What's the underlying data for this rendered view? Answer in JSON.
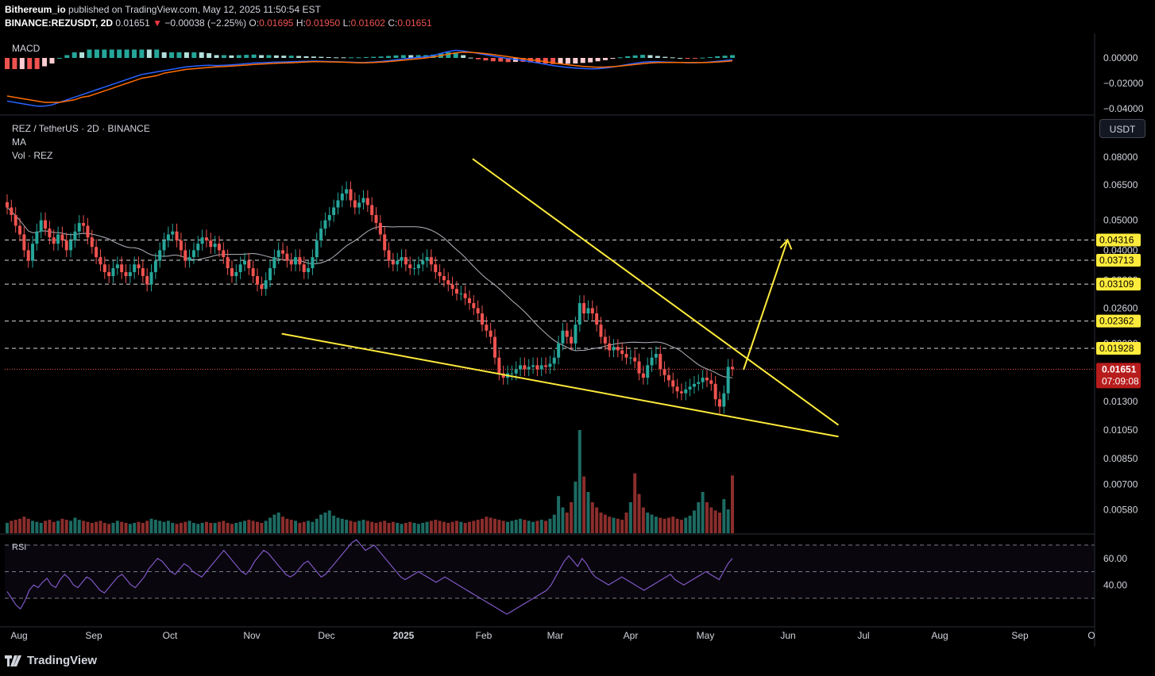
{
  "header": {
    "author": "Bithereum_io",
    "published_text": "published on TradingView.com, May 12, 2025 11:50:54 EST",
    "symbol": "BINANCE:REZUSDT, 2D",
    "last": "0.01651",
    "change_arrow": "▼",
    "change": "−0.00038 (−2.25%)",
    "o_label": "O:",
    "open": "0.01695",
    "h_label": "H:",
    "high": "0.01950",
    "l_label": "L:",
    "low": "0.01602",
    "c_label": "C:",
    "close": "0.01651"
  },
  "panes": {
    "macd_label": "MACD",
    "main_title": "REZ / TetherUS · 2D · BINANCE",
    "ma_label": "MA",
    "vol_label": "Vol · REZ",
    "rsi_label": "RSI"
  },
  "currency_button": "USDT",
  "branding": "TradingView",
  "icons": {
    "logo": "tradingview-logo-icon",
    "annotation_arrow": "arrow-up-right-icon"
  },
  "colors": {
    "background": "#000000",
    "up": "#26a69a",
    "down": "#ef5350",
    "trendline": "#ffeb3b",
    "ma": "#b2b5be",
    "macd": "#2962ff",
    "signal": "#ff6d00",
    "rsi": "#7e57c2",
    "price_tag": "#b71c1c"
  },
  "chart_data": [
    {
      "type": "candlestick",
      "title": "REZ / TetherUS · 2D · BINANCE",
      "price_scale": "log",
      "ylim": [
        0.0052,
        0.098
      ],
      "x_labels": [
        "Aug",
        "Sep",
        "Oct",
        "Nov",
        "Dec",
        "2025",
        "Feb",
        "Mar",
        "Apr",
        "May",
        "Jun",
        "Jul",
        "Aug",
        "Sep",
        "O"
      ],
      "y_ticks": [
        "0.08000",
        "0.06500",
        "0.05000",
        "0.04000",
        "0.03200",
        "0.02600",
        "0.02000",
        "0.01600",
        "0.01300",
        "0.01050",
        "0.00850",
        "0.00700",
        "0.00580"
      ],
      "y_tick_values": [
        0.08,
        0.065,
        0.05,
        0.04,
        0.032,
        0.026,
        0.02,
        0.016,
        0.013,
        0.0105,
        0.0085,
        0.007,
        0.0058
      ],
      "horizontal_levels": [
        0.04316,
        0.03713,
        0.03109,
        0.02362,
        0.01928
      ],
      "level_labels": [
        "0.04316",
        "0.03713",
        "0.03109",
        "0.02362",
        "0.01928"
      ],
      "last_price": 0.01651,
      "last_price_label": "0.01651",
      "countdown": "07:09:08",
      "candles_close": [
        0.055,
        0.052,
        0.048,
        0.045,
        0.04,
        0.037,
        0.042,
        0.046,
        0.05,
        0.047,
        0.044,
        0.042,
        0.045,
        0.043,
        0.04,
        0.043,
        0.046,
        0.049,
        0.048,
        0.044,
        0.041,
        0.038,
        0.036,
        0.034,
        0.033,
        0.035,
        0.036,
        0.034,
        0.033,
        0.034,
        0.036,
        0.035,
        0.033,
        0.031,
        0.034,
        0.037,
        0.04,
        0.043,
        0.045,
        0.046,
        0.043,
        0.04,
        0.037,
        0.038,
        0.04,
        0.042,
        0.044,
        0.043,
        0.041,
        0.042,
        0.04,
        0.038,
        0.035,
        0.033,
        0.034,
        0.036,
        0.037,
        0.035,
        0.033,
        0.031,
        0.03,
        0.032,
        0.035,
        0.038,
        0.04,
        0.039,
        0.037,
        0.036,
        0.038,
        0.036,
        0.034,
        0.035,
        0.038,
        0.043,
        0.047,
        0.05,
        0.052,
        0.055,
        0.058,
        0.061,
        0.063,
        0.058,
        0.055,
        0.057,
        0.059,
        0.056,
        0.052,
        0.049,
        0.045,
        0.04,
        0.037,
        0.036,
        0.037,
        0.038,
        0.036,
        0.035,
        0.035,
        0.036,
        0.037,
        0.038,
        0.036,
        0.034,
        0.033,
        0.032,
        0.031,
        0.03,
        0.029,
        0.029,
        0.028,
        0.027,
        0.026,
        0.025,
        0.023,
        0.022,
        0.021,
        0.018,
        0.016,
        0.0155,
        0.016,
        0.016,
        0.0165,
        0.017,
        0.0165,
        0.0168,
        0.017,
        0.0165,
        0.017,
        0.0168,
        0.0172,
        0.018,
        0.02,
        0.022,
        0.021,
        0.02,
        0.023,
        0.027,
        0.025,
        0.026,
        0.025,
        0.023,
        0.021,
        0.02,
        0.019,
        0.0195,
        0.019,
        0.0185,
        0.018,
        0.018,
        0.0175,
        0.016,
        0.0155,
        0.017,
        0.018,
        0.0185,
        0.0165,
        0.0158,
        0.0152,
        0.0145,
        0.014,
        0.0138,
        0.0142,
        0.0145,
        0.0148,
        0.015,
        0.0155,
        0.0152,
        0.0148,
        0.0132,
        0.0125,
        0.0138,
        0.0168,
        0.01651
      ],
      "volume_relative": [
        0.1,
        0.12,
        0.13,
        0.14,
        0.16,
        0.14,
        0.12,
        0.11,
        0.1,
        0.12,
        0.13,
        0.11,
        0.12,
        0.14,
        0.13,
        0.12,
        0.15,
        0.13,
        0.12,
        0.11,
        0.1,
        0.11,
        0.12,
        0.1,
        0.09,
        0.1,
        0.12,
        0.11,
        0.1,
        0.09,
        0.1,
        0.11,
        0.1,
        0.12,
        0.14,
        0.13,
        0.12,
        0.11,
        0.12,
        0.1,
        0.09,
        0.1,
        0.11,
        0.12,
        0.1,
        0.09,
        0.1,
        0.11,
        0.1,
        0.1,
        0.11,
        0.12,
        0.1,
        0.09,
        0.1,
        0.11,
        0.12,
        0.13,
        0.12,
        0.11,
        0.1,
        0.12,
        0.15,
        0.18,
        0.2,
        0.16,
        0.14,
        0.13,
        0.12,
        0.1,
        0.11,
        0.12,
        0.11,
        0.14,
        0.18,
        0.2,
        0.22,
        0.17,
        0.15,
        0.14,
        0.13,
        0.12,
        0.11,
        0.12,
        0.13,
        0.12,
        0.11,
        0.1,
        0.11,
        0.12,
        0.1,
        0.11,
        0.1,
        0.09,
        0.1,
        0.11,
        0.1,
        0.09,
        0.1,
        0.11,
        0.12,
        0.13,
        0.12,
        0.11,
        0.1,
        0.11,
        0.12,
        0.11,
        0.1,
        0.11,
        0.12,
        0.13,
        0.14,
        0.16,
        0.15,
        0.14,
        0.13,
        0.12,
        0.11,
        0.12,
        0.13,
        0.14,
        0.13,
        0.12,
        0.11,
        0.12,
        0.13,
        0.12,
        0.14,
        0.18,
        0.36,
        0.25,
        0.2,
        0.3,
        0.5,
        1.0,
        0.55,
        0.4,
        0.3,
        0.25,
        0.2,
        0.18,
        0.16,
        0.15,
        0.14,
        0.13,
        0.2,
        0.3,
        0.58,
        0.38,
        0.25,
        0.2,
        0.18,
        0.16,
        0.15,
        0.14,
        0.15,
        0.16,
        0.14,
        0.13,
        0.15,
        0.17,
        0.22,
        0.3,
        0.4,
        0.3,
        0.25,
        0.22,
        0.2,
        0.33,
        0.23,
        0.56
      ]
    },
    {
      "type": "line",
      "title": "MACD",
      "y_ticks": [
        "0.00000",
        "−0.02000",
        "−0.04000"
      ],
      "y_tick_values": [
        0.0,
        -0.02,
        -0.04
      ],
      "macd": [
        -0.034,
        -0.035,
        -0.036,
        -0.037,
        -0.038,
        -0.038,
        -0.037,
        -0.035,
        -0.033,
        -0.031,
        -0.029,
        -0.027,
        -0.025,
        -0.023,
        -0.021,
        -0.019,
        -0.017,
        -0.015,
        -0.013,
        -0.012,
        -0.011,
        -0.01,
        -0.009,
        -0.008,
        -0.007,
        -0.0065,
        -0.006,
        -0.0058,
        -0.006,
        -0.0058,
        -0.0055,
        -0.005,
        -0.0045,
        -0.004,
        -0.0038,
        -0.0035,
        -0.0033,
        -0.0032,
        -0.003,
        -0.0028,
        -0.0026,
        -0.0025,
        -0.0026,
        -0.0028,
        -0.003,
        -0.0032,
        -0.0034,
        -0.0036,
        -0.0035,
        -0.0032,
        -0.0028,
        -0.0022,
        -0.0015,
        -0.0008,
        -0.0002,
        0.0004,
        0.001,
        0.002,
        0.0035,
        0.005,
        0.006,
        0.0055,
        0.0045,
        0.0035,
        0.0025,
        0.0015,
        0.0005,
        -0.0005,
        -0.0012,
        -0.002,
        -0.003,
        -0.004,
        -0.005,
        -0.006,
        -0.0068,
        -0.0075,
        -0.008,
        -0.0084,
        -0.0086,
        -0.0085,
        -0.008,
        -0.0072,
        -0.0062,
        -0.0052,
        -0.0042,
        -0.0034,
        -0.003,
        -0.003,
        -0.0032,
        -0.0034,
        -0.0036,
        -0.0038,
        -0.0038,
        -0.0036,
        -0.0032,
        -0.0026,
        -0.002,
        -0.0014
      ],
      "signal": [
        -0.03,
        -0.031,
        -0.032,
        -0.033,
        -0.034,
        -0.035,
        -0.035,
        -0.035,
        -0.034,
        -0.033,
        -0.031,
        -0.03,
        -0.028,
        -0.026,
        -0.024,
        -0.022,
        -0.02,
        -0.018,
        -0.016,
        -0.015,
        -0.014,
        -0.012,
        -0.011,
        -0.01,
        -0.009,
        -0.0085,
        -0.008,
        -0.0075,
        -0.007,
        -0.0068,
        -0.0064,
        -0.006,
        -0.0056,
        -0.0052,
        -0.0048,
        -0.0045,
        -0.0042,
        -0.004,
        -0.0038,
        -0.0035,
        -0.0032,
        -0.003,
        -0.003,
        -0.0031,
        -0.0032,
        -0.0034,
        -0.0036,
        -0.0038,
        -0.0038,
        -0.0036,
        -0.0033,
        -0.0029,
        -0.0024,
        -0.0018,
        -0.0012,
        -0.0006,
        0.0,
        0.0008,
        0.0018,
        0.003,
        0.004,
        0.0045,
        0.0044,
        0.004,
        0.0034,
        0.0027,
        0.0018,
        0.001,
        0.0002,
        -0.0006,
        -0.0014,
        -0.0022,
        -0.003,
        -0.0038,
        -0.0046,
        -0.0054,
        -0.006,
        -0.0066,
        -0.007,
        -0.0073,
        -0.0072,
        -0.0069,
        -0.0064,
        -0.0058,
        -0.0051,
        -0.0045,
        -0.004,
        -0.0037,
        -0.0036,
        -0.0036,
        -0.0036,
        -0.0037,
        -0.0037,
        -0.0037,
        -0.0035,
        -0.0032,
        -0.0028,
        -0.0024
      ]
    },
    {
      "type": "line",
      "title": "RSI",
      "y_ticks": [
        "60.00",
        "40.00"
      ],
      "y_tick_values": [
        60,
        40
      ],
      "bands": [
        70,
        50,
        30
      ],
      "values": [
        35,
        30,
        25,
        22,
        28,
        36,
        40,
        38,
        42,
        45,
        40,
        38,
        44,
        48,
        45,
        40,
        38,
        42,
        46,
        44,
        40,
        36,
        34,
        38,
        42,
        46,
        48,
        44,
        40,
        38,
        42,
        46,
        52,
        56,
        60,
        58,
        54,
        50,
        48,
        52,
        56,
        54,
        50,
        48,
        46,
        50,
        54,
        58,
        62,
        66,
        62,
        58,
        54,
        50,
        48,
        52,
        58,
        62,
        66,
        64,
        60,
        56,
        52,
        48,
        46,
        48,
        52,
        56,
        58,
        54,
        50,
        46,
        48,
        52,
        56,
        60,
        64,
        68,
        72,
        74,
        70,
        66,
        68,
        70,
        66,
        62,
        58,
        54,
        50,
        46,
        44,
        46,
        48,
        50,
        48,
        46,
        44,
        42,
        44,
        46,
        44,
        42,
        40,
        38,
        36,
        34,
        32,
        30,
        28,
        26,
        24,
        22,
        20,
        18,
        20,
        22,
        24,
        26,
        28,
        30,
        32,
        34,
        36,
        40,
        46,
        52,
        58,
        62,
        58,
        54,
        60,
        56,
        50,
        46,
        44,
        42,
        40,
        42,
        44,
        46,
        44,
        42,
        40,
        38,
        36,
        38,
        40,
        42,
        44,
        46,
        48,
        44,
        42,
        40,
        42,
        44,
        46,
        48,
        50,
        48,
        46,
        44,
        50,
        56,
        60
      ]
    }
  ]
}
